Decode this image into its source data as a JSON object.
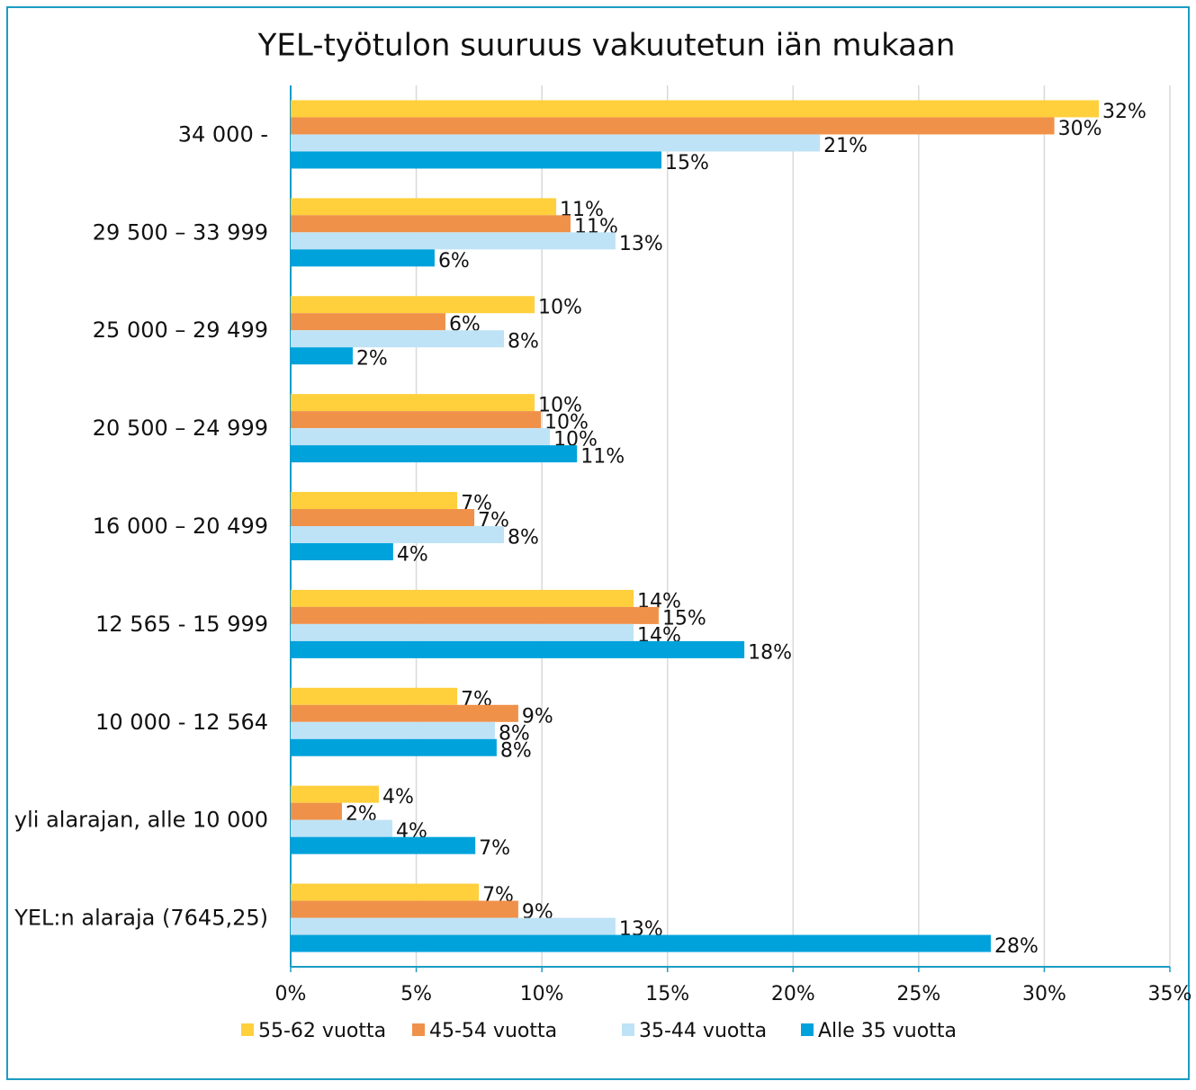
{
  "chart_data": {
    "type": "bar",
    "title": "YEL-työtulon suuruus vakuutetun iän mukaan",
    "categories": [
      "34 000 -",
      "29 500 – 33 999",
      "25 000 – 29 499",
      "20 500 – 24 999",
      "16 000 – 20 499",
      "12 565 - 15 999",
      "10 000 - 12 564",
      "yli alarajan, alle 10 000",
      "YEL:n alaraja (7645,25)"
    ],
    "series": [
      {
        "name": "55-62 vuotta",
        "color": "#ffd03c",
        "values": [
          32.17,
          10.57,
          9.71,
          9.71,
          6.63,
          13.65,
          6.63,
          3.51,
          7.49
        ],
        "value_labels": [
          "32%",
          "11%",
          "10%",
          "10%",
          "7%",
          "14%",
          "7%",
          "4%",
          "7%"
        ]
      },
      {
        "name": "45-54 vuotta",
        "color": "#f0914a",
        "values": [
          30.4,
          11.14,
          6.16,
          9.96,
          7.31,
          14.65,
          9.06,
          2.04,
          9.06
        ],
        "value_labels": [
          "30%",
          "11%",
          "6%",
          "10%",
          "7%",
          "15%",
          "9%",
          "2%",
          "9%"
        ]
      },
      {
        "name": "35-44 vuotta",
        "color": "#bfe3f6",
        "values": [
          21.07,
          12.93,
          8.49,
          10.32,
          8.49,
          13.65,
          8.13,
          4.05,
          12.93
        ],
        "value_labels": [
          "21%",
          "13%",
          "8%",
          "10%",
          "8%",
          "14%",
          "8%",
          "4%",
          "13%"
        ]
      },
      {
        "name": "Alle 35 vuotta",
        "color": "#00a2dc",
        "values": [
          14.76,
          5.73,
          2.47,
          11.4,
          4.08,
          18.06,
          8.2,
          7.35,
          27.87
        ],
        "value_labels": [
          "15%",
          "6%",
          "2%",
          "11%",
          "4%",
          "18%",
          "8%",
          "7%",
          "28%"
        ]
      }
    ],
    "xlim": [
      0,
      35
    ],
    "xticks": [
      {
        "value": 0,
        "label": "0%"
      },
      {
        "value": 5,
        "label": "5%"
      },
      {
        "value": 10,
        "label": "10%"
      },
      {
        "value": 15,
        "label": "15%"
      },
      {
        "value": 20,
        "label": "20%"
      },
      {
        "value": 25,
        "label": "25%"
      },
      {
        "value": 30,
        "label": "30%"
      },
      {
        "value": 35,
        "label": "35%"
      }
    ],
    "grid": true,
    "legend": "bottom"
  }
}
